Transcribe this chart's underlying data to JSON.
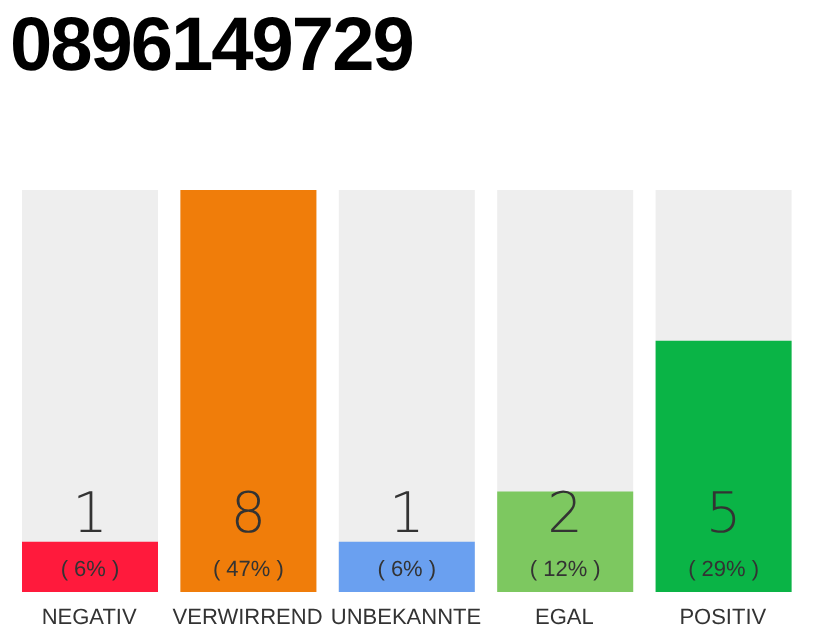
{
  "chart_data": {
    "type": "bar",
    "title": "0896149729",
    "categories": [
      "NEGATIV",
      "VERWIRREND",
      "UNBEKANNTE",
      "EGAL",
      "POSITIV"
    ],
    "values": [
      1,
      8,
      1,
      2,
      5
    ],
    "colors": [
      "#ff1a3c",
      "#f07d0a",
      "#6aa0f0",
      "#7dc860",
      "#0ab446"
    ],
    "ylim": [
      0,
      8
    ],
    "tick_labels": "x",
    "grid": false,
    "legend": false,
    "data_labels": true,
    "annotations": [
      "( 6% )",
      "( 47% )",
      "( 6% )",
      "( 12% )",
      "( 29% )"
    ]
  }
}
